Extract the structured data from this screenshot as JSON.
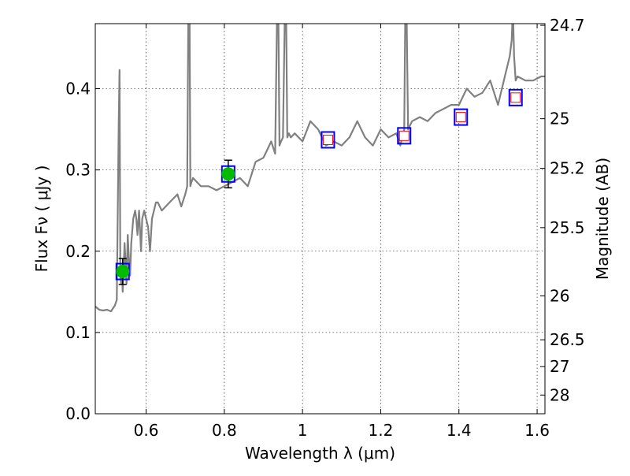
{
  "chart_data": {
    "type": "scatter",
    "title": "",
    "xlabel": "Wavelength  λ (μm)",
    "ylabel": "Flux  Fν  ( μJy )",
    "y2label": "Magnitude (AB)",
    "xlim": [
      0.47,
      1.62
    ],
    "ylim": [
      0.0,
      0.48
    ],
    "grid": true,
    "grid_style": "dotted",
    "x_ticks": [
      0.6,
      0.8,
      1.0,
      1.2,
      1.4,
      1.6
    ],
    "x_tick_labels": [
      "0.6",
      "0.8",
      "1",
      "1.2",
      "1.4",
      "1.6"
    ],
    "y_ticks": [
      0.0,
      0.1,
      0.2,
      0.3,
      0.4
    ],
    "y_tick_labels": [
      "0.0",
      "0.1",
      "0.2",
      "0.3",
      "0.4"
    ],
    "y2_ticks": [
      {
        "label": "24.7",
        "flux": 0.478
      },
      {
        "label": "25",
        "flux": 0.363
      },
      {
        "label": "25.2",
        "flux": 0.302
      },
      {
        "label": "25.5",
        "flux": 0.229
      },
      {
        "label": "26",
        "flux": 0.145
      },
      {
        "label": "26.5",
        "flux": 0.091
      },
      {
        "label": "27",
        "flux": 0.058
      },
      {
        "label": "28",
        "flux": 0.023
      }
    ],
    "colors": {
      "spectrum": "#808080",
      "observed": "#00bb00",
      "model_box": "#0000ff",
      "upper_box": "#ff0000",
      "grid": "#000000"
    },
    "series": [
      {
        "kind": "spectrum",
        "x": [
          0.47,
          0.48,
          0.49,
          0.5,
          0.51,
          0.52,
          0.525,
          0.53,
          0.532,
          0.534,
          0.536,
          0.538,
          0.54,
          0.545,
          0.55,
          0.553,
          0.556,
          0.559,
          0.562,
          0.567,
          0.572,
          0.575,
          0.578,
          0.582,
          0.587,
          0.59,
          0.595,
          0.6,
          0.605,
          0.61,
          0.615,
          0.62,
          0.625,
          0.63,
          0.64,
          0.66,
          0.68,
          0.69,
          0.7,
          0.705,
          0.708,
          0.711,
          0.713,
          0.716,
          0.72,
          0.74,
          0.76,
          0.78,
          0.8,
          0.82,
          0.84,
          0.86,
          0.88,
          0.9,
          0.92,
          0.93,
          0.935,
          0.938,
          0.941,
          0.945,
          0.95,
          0.955,
          0.958,
          0.961,
          0.965,
          0.97,
          0.98,
          1.0,
          1.02,
          1.04,
          1.06,
          1.08,
          1.1,
          1.12,
          1.14,
          1.16,
          1.18,
          1.2,
          1.22,
          1.24,
          1.25,
          1.26,
          1.263,
          1.266,
          1.27,
          1.28,
          1.3,
          1.32,
          1.34,
          1.36,
          1.38,
          1.4,
          1.42,
          1.44,
          1.46,
          1.48,
          1.5,
          1.52,
          1.53,
          1.535,
          1.538,
          1.541,
          1.545,
          1.55,
          1.57,
          1.59,
          1.61,
          1.62
        ],
        "y": [
          0.132,
          0.128,
          0.127,
          0.128,
          0.126,
          0.133,
          0.14,
          0.36,
          0.423,
          0.17,
          0.16,
          0.18,
          0.15,
          0.21,
          0.16,
          0.22,
          0.19,
          0.17,
          0.21,
          0.24,
          0.25,
          0.24,
          0.22,
          0.25,
          0.2,
          0.24,
          0.25,
          0.24,
          0.23,
          0.2,
          0.24,
          0.25,
          0.26,
          0.26,
          0.25,
          0.26,
          0.27,
          0.255,
          0.27,
          0.28,
          0.5,
          0.5,
          0.28,
          0.285,
          0.29,
          0.28,
          0.28,
          0.275,
          0.28,
          0.285,
          0.29,
          0.28,
          0.31,
          0.315,
          0.335,
          0.32,
          0.5,
          0.5,
          0.33,
          0.335,
          0.34,
          0.5,
          0.5,
          0.34,
          0.345,
          0.34,
          0.345,
          0.335,
          0.36,
          0.35,
          0.33,
          0.335,
          0.33,
          0.34,
          0.36,
          0.34,
          0.33,
          0.35,
          0.34,
          0.345,
          0.33,
          0.35,
          0.5,
          0.5,
          0.35,
          0.36,
          0.365,
          0.36,
          0.37,
          0.375,
          0.38,
          0.38,
          0.4,
          0.39,
          0.395,
          0.41,
          0.38,
          0.42,
          0.44,
          0.46,
          0.5,
          0.44,
          0.41,
          0.415,
          0.41,
          0.41,
          0.415,
          0.415
        ]
      },
      {
        "kind": "observed",
        "x": [
          0.54,
          0.81
        ],
        "y": [
          0.175,
          0.295
        ],
        "yerr": [
          0.016,
          0.017
        ]
      },
      {
        "kind": "model-box",
        "x": [
          0.54,
          0.81,
          1.065,
          1.26,
          1.405,
          1.545
        ],
        "y": [
          0.175,
          0.295,
          0.337,
          0.342,
          0.365,
          0.389
        ]
      },
      {
        "kind": "upper-box",
        "x": [
          1.065,
          1.26,
          1.405,
          1.545
        ],
        "y": [
          0.337,
          0.342,
          0.365,
          0.389
        ]
      }
    ]
  }
}
